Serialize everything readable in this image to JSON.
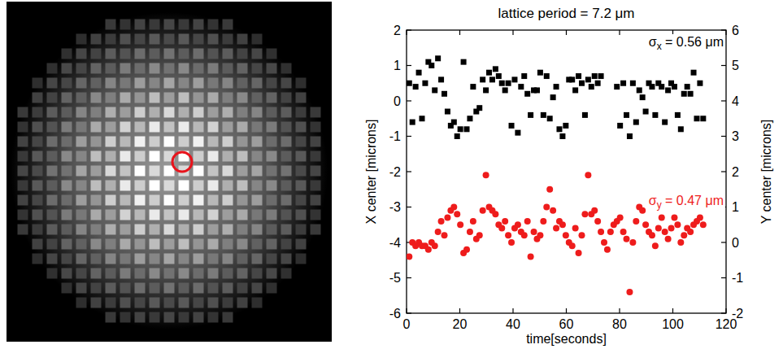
{
  "chart_data": {
    "type": "scatter",
    "title": "lattice period = 7.2 μm",
    "xlabel": "time[seconds]",
    "ylabel": "X center [microns]",
    "y2label": "Y center [microns]",
    "annotations": [
      "σx = 0.56 μm",
      "σy = 0.47 μm"
    ],
    "xlim": [
      0,
      120
    ],
    "xticks": [
      0,
      20,
      40,
      60,
      80,
      100,
      120
    ],
    "ylim": [
      -6,
      2
    ],
    "yticks": [
      -6,
      -5,
      -4,
      -3,
      -2,
      -1,
      0,
      1,
      2
    ],
    "y2lim": [
      -2,
      6
    ],
    "y2ticks": [
      -2,
      -1,
      0,
      1,
      2,
      3,
      4,
      5,
      6
    ],
    "grid": false,
    "x": [
      1.0,
      2.2,
      3.4,
      4.6,
      5.8,
      7.0,
      8.2,
      9.4,
      10.6,
      11.8,
      13.0,
      14.2,
      15.4,
      16.6,
      17.8,
      19.0,
      20.2,
      21.4,
      22.6,
      23.8,
      25.0,
      26.2,
      27.4,
      28.6,
      29.8,
      31.0,
      32.2,
      33.4,
      34.6,
      35.8,
      37.0,
      38.2,
      39.4,
      40.6,
      41.8,
      43.0,
      44.2,
      45.4,
      46.6,
      47.8,
      49.0,
      50.2,
      51.4,
      52.6,
      53.8,
      55.0,
      56.2,
      57.4,
      58.6,
      59.8,
      61.0,
      62.2,
      63.4,
      64.6,
      65.8,
      67.0,
      68.2,
      69.4,
      70.6,
      71.8,
      73.0,
      74.2,
      75.4,
      76.6,
      77.8,
      79.0,
      80.2,
      81.4,
      82.6,
      83.8,
      85.0,
      86.2,
      87.4,
      88.6,
      89.8,
      91.0,
      92.2,
      93.4,
      94.6,
      95.8,
      97.0,
      98.2,
      99.4,
      100.6,
      101.8,
      103.0,
      104.2,
      105.4,
      106.6,
      107.8,
      109.0,
      110.2,
      111.4
    ],
    "series": [
      {
        "color": "#000000",
        "marker": "square",
        "axis": "y",
        "values": [
          0.5,
          -0.6,
          0.4,
          0.8,
          -0.5,
          0.5,
          1.1,
          1.0,
          0.3,
          1.2,
          0.6,
          0.2,
          -0.3,
          -0.7,
          -0.6,
          -1.0,
          -0.8,
          1.1,
          -0.8,
          -0.5,
          0.4,
          -0.3,
          -0.2,
          0.6,
          0.3,
          0.8,
          0.6,
          0.9,
          0.7,
          0.5,
          0.3,
          0.5,
          -0.7,
          0.6,
          -0.9,
          0.4,
          0.7,
          0.2,
          -0.4,
          0.3,
          0.3,
          0.8,
          -0.4,
          0.7,
          -0.5,
          0.1,
          0.4,
          -0.8,
          -1.0,
          -0.7,
          0.6,
          0.6,
          0.3,
          0.7,
          0.5,
          -0.4,
          0.6,
          0.4,
          0.7,
          0.5,
          0.7,
          null,
          null,
          null,
          null,
          0.4,
          -0.7,
          0.5,
          -0.4,
          -1.0,
          0.5,
          -0.6,
          0.3,
          0.1,
          -0.3,
          0.5,
          0.4,
          -0.4,
          0.5,
          0.4,
          -0.6,
          0.3,
          0.5,
          0.4,
          -0.4,
          -0.8,
          0.2,
          0.4,
          0.2,
          0.8,
          -0.5,
          0.5,
          -0.5
        ]
      },
      {
        "color": "#ee1c1c",
        "marker": "circle",
        "axis": "y2",
        "values": [
          -0.4,
          0.0,
          -0.1,
          0.0,
          -0.1,
          -0.1,
          -0.2,
          0.0,
          -0.1,
          0.3,
          0.6,
          0.2,
          0.7,
          0.9,
          1.0,
          0.8,
          0.5,
          -0.3,
          -0.2,
          0.3,
          0.6,
          0.1,
          0.2,
          0.9,
          1.9,
          1.0,
          0.9,
          0.8,
          0.5,
          0.4,
          0.6,
          0.2,
          0.0,
          0.4,
          0.5,
          0.3,
          0.2,
          0.6,
          -0.4,
          0.3,
          0.1,
          0.2,
          0.6,
          1.0,
          1.5,
          0.9,
          0.4,
          0.6,
          0.5,
          0.2,
          0.0,
          -0.1,
          0.4,
          -0.3,
          0.2,
          0.8,
          1.9,
          0.8,
          0.9,
          0.6,
          0.3,
          0.0,
          -0.2,
          0.3,
          0.5,
          0.6,
          0.7,
          0.3,
          0.1,
          -1.4,
          0.0,
          0.6,
          1.0,
          0.9,
          0.5,
          0.3,
          0.2,
          -0.1,
          0.4,
          0.7,
          0.3,
          0.1,
          0.4,
          0.7,
          0.5,
          0.0,
          0.2,
          0.4,
          0.3,
          0.5,
          0.6,
          0.7,
          0.5
        ]
      }
    ]
  }
}
